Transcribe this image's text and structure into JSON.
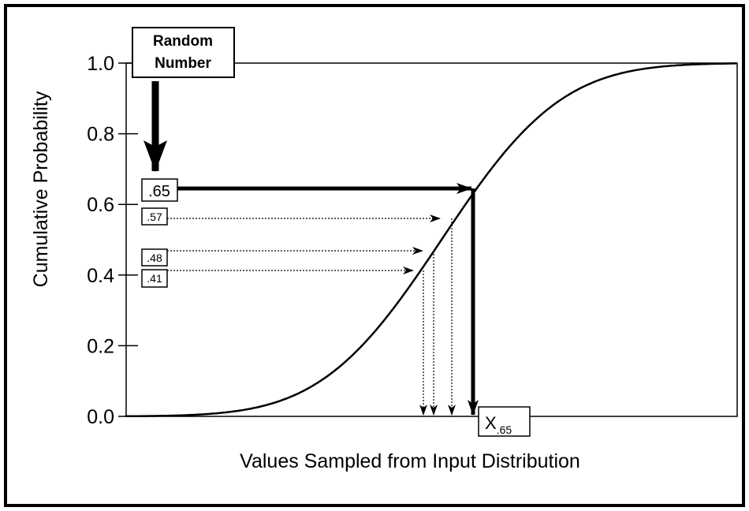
{
  "axes": {
    "y_title": "Cumulative Probability",
    "x_title": "Values Sampled from Input Distribution",
    "y_ticks": [
      "0.0",
      "0.2",
      "0.4",
      "0.6",
      "0.8",
      "1.0"
    ]
  },
  "random_number_box": [
    "Random",
    "Number"
  ],
  "samples": [
    ".65",
    ".57",
    ".48",
    ".41"
  ],
  "result": {
    "main": "X",
    "sub": ".65"
  }
}
